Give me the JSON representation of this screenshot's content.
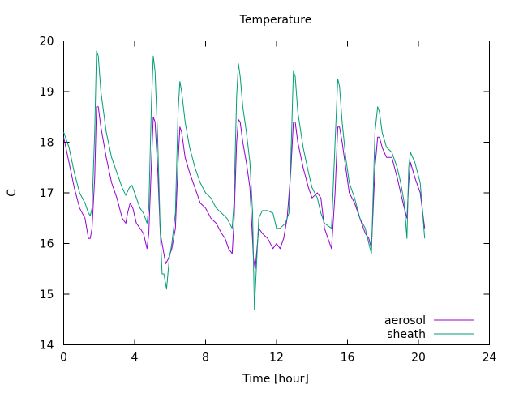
{
  "chart_data": {
    "type": "line",
    "title": "Temperature",
    "xlabel": "Time [hour]",
    "ylabel": "C",
    "xlim": [
      0,
      24
    ],
    "ylim": [
      14,
      20
    ],
    "xticks": [
      0,
      4,
      8,
      12,
      16,
      20,
      24
    ],
    "yticks": [
      14,
      15,
      16,
      17,
      18,
      19,
      20
    ],
    "grid": false,
    "legend_position": "bottom-right",
    "series": [
      {
        "name": "aerosol",
        "color": "#9400d3",
        "points": [
          [
            0.0,
            18.1
          ],
          [
            0.3,
            17.6
          ],
          [
            0.6,
            17.1
          ],
          [
            0.9,
            16.7
          ],
          [
            1.2,
            16.5
          ],
          [
            1.4,
            16.1
          ],
          [
            1.5,
            16.1
          ],
          [
            1.6,
            16.3
          ],
          [
            1.75,
            17.3
          ],
          [
            1.85,
            18.7
          ],
          [
            1.95,
            18.7
          ],
          [
            2.1,
            18.3
          ],
          [
            2.4,
            17.7
          ],
          [
            2.7,
            17.2
          ],
          [
            3.0,
            16.9
          ],
          [
            3.3,
            16.5
          ],
          [
            3.5,
            16.4
          ],
          [
            3.6,
            16.6
          ],
          [
            3.75,
            16.8
          ],
          [
            3.9,
            16.7
          ],
          [
            4.1,
            16.4
          ],
          [
            4.3,
            16.3
          ],
          [
            4.5,
            16.2
          ],
          [
            4.7,
            15.9
          ],
          [
            4.8,
            16.2
          ],
          [
            4.95,
            17.6
          ],
          [
            5.05,
            18.5
          ],
          [
            5.15,
            18.4
          ],
          [
            5.3,
            17.5
          ],
          [
            5.45,
            16.2
          ],
          [
            5.6,
            15.9
          ],
          [
            5.75,
            15.6
          ],
          [
            5.9,
            15.7
          ],
          [
            6.1,
            15.9
          ],
          [
            6.3,
            16.3
          ],
          [
            6.45,
            17.6
          ],
          [
            6.55,
            18.3
          ],
          [
            6.65,
            18.2
          ],
          [
            6.85,
            17.7
          ],
          [
            7.1,
            17.4
          ],
          [
            7.4,
            17.1
          ],
          [
            7.7,
            16.8
          ],
          [
            8.0,
            16.7
          ],
          [
            8.3,
            16.5
          ],
          [
            8.6,
            16.4
          ],
          [
            8.9,
            16.2
          ],
          [
            9.1,
            16.1
          ],
          [
            9.3,
            15.9
          ],
          [
            9.5,
            15.8
          ],
          [
            9.6,
            16.4
          ],
          [
            9.75,
            18.0
          ],
          [
            9.85,
            18.45
          ],
          [
            9.95,
            18.4
          ],
          [
            10.1,
            18.0
          ],
          [
            10.3,
            17.6
          ],
          [
            10.5,
            17.1
          ],
          [
            10.7,
            15.7
          ],
          [
            10.8,
            15.5
          ],
          [
            10.9,
            15.9
          ],
          [
            11.0,
            16.3
          ],
          [
            11.2,
            16.2
          ],
          [
            11.5,
            16.1
          ],
          [
            11.8,
            15.9
          ],
          [
            12.0,
            16.0
          ],
          [
            12.2,
            15.9
          ],
          [
            12.4,
            16.1
          ],
          [
            12.6,
            16.5
          ],
          [
            12.8,
            17.4
          ],
          [
            12.95,
            18.4
          ],
          [
            13.05,
            18.4
          ],
          [
            13.2,
            18.0
          ],
          [
            13.5,
            17.5
          ],
          [
            13.8,
            17.1
          ],
          [
            14.0,
            16.9
          ],
          [
            14.3,
            17.0
          ],
          [
            14.5,
            16.9
          ],
          [
            14.7,
            16.3
          ],
          [
            14.9,
            16.1
          ],
          [
            15.1,
            15.9
          ],
          [
            15.3,
            17.0
          ],
          [
            15.45,
            18.3
          ],
          [
            15.55,
            18.3
          ],
          [
            15.7,
            18.0
          ],
          [
            15.9,
            17.5
          ],
          [
            16.1,
            17.0
          ],
          [
            16.4,
            16.8
          ],
          [
            16.7,
            16.5
          ],
          [
            17.0,
            16.2
          ],
          [
            17.2,
            16.1
          ],
          [
            17.35,
            15.9
          ],
          [
            17.55,
            17.5
          ],
          [
            17.7,
            18.1
          ],
          [
            17.8,
            18.1
          ],
          [
            17.95,
            17.9
          ],
          [
            18.2,
            17.7
          ],
          [
            18.5,
            17.7
          ],
          [
            18.8,
            17.3
          ],
          [
            19.0,
            17.0
          ],
          [
            19.2,
            16.7
          ],
          [
            19.35,
            16.5
          ],
          [
            19.45,
            17.2
          ],
          [
            19.55,
            17.6
          ],
          [
            19.8,
            17.3
          ],
          [
            20.1,
            17.0
          ],
          [
            20.35,
            16.3
          ]
        ]
      },
      {
        "name": "sheath",
        "color": "#009e73",
        "points": [
          [
            0.0,
            18.2
          ],
          [
            0.3,
            17.9
          ],
          [
            0.6,
            17.4
          ],
          [
            0.9,
            17.0
          ],
          [
            1.2,
            16.8
          ],
          [
            1.4,
            16.6
          ],
          [
            1.5,
            16.55
          ],
          [
            1.6,
            16.7
          ],
          [
            1.75,
            18.2
          ],
          [
            1.85,
            19.8
          ],
          [
            1.95,
            19.7
          ],
          [
            2.1,
            19.0
          ],
          [
            2.4,
            18.2
          ],
          [
            2.7,
            17.7
          ],
          [
            3.0,
            17.4
          ],
          [
            3.3,
            17.1
          ],
          [
            3.5,
            16.95
          ],
          [
            3.7,
            17.1
          ],
          [
            3.85,
            17.15
          ],
          [
            4.1,
            16.9
          ],
          [
            4.3,
            16.7
          ],
          [
            4.5,
            16.6
          ],
          [
            4.7,
            16.4
          ],
          [
            4.8,
            16.7
          ],
          [
            4.95,
            18.8
          ],
          [
            5.05,
            19.7
          ],
          [
            5.15,
            19.4
          ],
          [
            5.3,
            18.1
          ],
          [
            5.45,
            16.2
          ],
          [
            5.55,
            15.4
          ],
          [
            5.65,
            15.4
          ],
          [
            5.8,
            15.1
          ],
          [
            5.95,
            15.7
          ],
          [
            6.1,
            16.0
          ],
          [
            6.3,
            16.6
          ],
          [
            6.45,
            18.6
          ],
          [
            6.55,
            19.2
          ],
          [
            6.65,
            19.0
          ],
          [
            6.85,
            18.4
          ],
          [
            7.1,
            17.9
          ],
          [
            7.4,
            17.5
          ],
          [
            7.7,
            17.2
          ],
          [
            8.0,
            17.0
          ],
          [
            8.3,
            16.9
          ],
          [
            8.6,
            16.7
          ],
          [
            8.9,
            16.6
          ],
          [
            9.2,
            16.5
          ],
          [
            9.5,
            16.3
          ],
          [
            9.6,
            16.8
          ],
          [
            9.75,
            18.9
          ],
          [
            9.85,
            19.55
          ],
          [
            9.95,
            19.3
          ],
          [
            10.1,
            18.7
          ],
          [
            10.3,
            18.2
          ],
          [
            10.5,
            17.6
          ],
          [
            10.65,
            16.6
          ],
          [
            10.75,
            14.7
          ],
          [
            10.85,
            15.4
          ],
          [
            11.0,
            16.5
          ],
          [
            11.2,
            16.65
          ],
          [
            11.5,
            16.65
          ],
          [
            11.8,
            16.6
          ],
          [
            12.0,
            16.3
          ],
          [
            12.2,
            16.3
          ],
          [
            12.5,
            16.4
          ],
          [
            12.7,
            16.6
          ],
          [
            12.8,
            17.6
          ],
          [
            12.95,
            19.4
          ],
          [
            13.05,
            19.3
          ],
          [
            13.2,
            18.6
          ],
          [
            13.5,
            17.9
          ],
          [
            13.8,
            17.4
          ],
          [
            14.0,
            17.1
          ],
          [
            14.3,
            16.9
          ],
          [
            14.5,
            16.6
          ],
          [
            14.7,
            16.4
          ],
          [
            14.9,
            16.35
          ],
          [
            15.1,
            16.3
          ],
          [
            15.3,
            18.0
          ],
          [
            15.45,
            19.25
          ],
          [
            15.55,
            19.1
          ],
          [
            15.7,
            18.4
          ],
          [
            15.9,
            17.7
          ],
          [
            16.1,
            17.2
          ],
          [
            16.4,
            16.9
          ],
          [
            16.7,
            16.5
          ],
          [
            17.0,
            16.3
          ],
          [
            17.2,
            16.0
          ],
          [
            17.35,
            15.8
          ],
          [
            17.55,
            18.2
          ],
          [
            17.7,
            18.7
          ],
          [
            17.8,
            18.6
          ],
          [
            17.95,
            18.2
          ],
          [
            18.2,
            17.9
          ],
          [
            18.5,
            17.8
          ],
          [
            18.8,
            17.5
          ],
          [
            19.0,
            17.2
          ],
          [
            19.2,
            16.8
          ],
          [
            19.35,
            16.1
          ],
          [
            19.45,
            17.5
          ],
          [
            19.55,
            17.8
          ],
          [
            19.8,
            17.6
          ],
          [
            20.1,
            17.2
          ],
          [
            20.35,
            16.1
          ]
        ]
      }
    ]
  }
}
